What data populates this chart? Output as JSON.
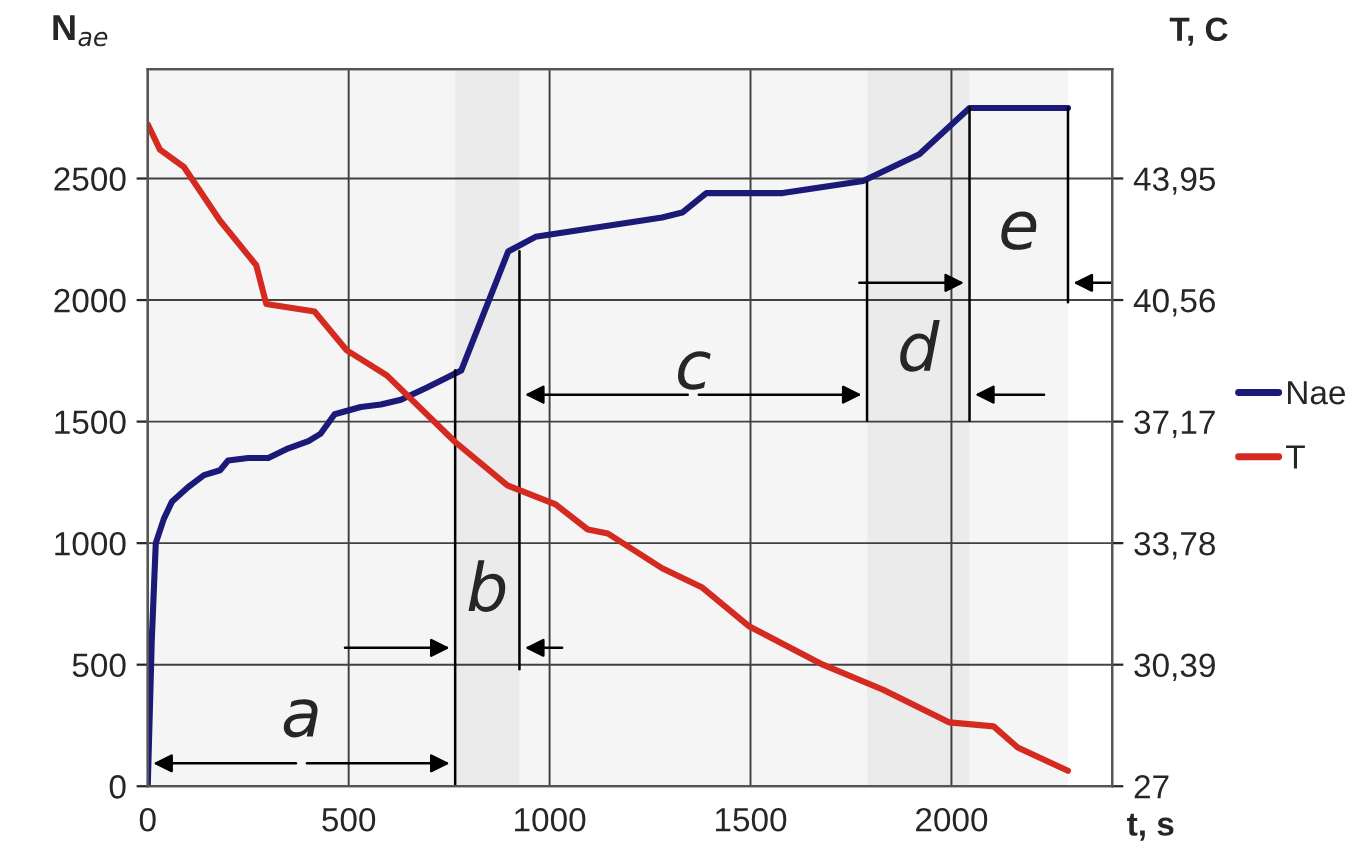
{
  "chart_data": {
    "type": "line",
    "xlabel": "t, s",
    "ylabel": "N$_{ae}$",
    "y2label": "T, C",
    "xlim": [
      0,
      2400
    ],
    "xticks": [
      0,
      500,
      1000,
      1500,
      2000
    ],
    "ylim": [
      0,
      2950
    ],
    "yticks": [
      0,
      500,
      1000,
      1500,
      2000,
      2500
    ],
    "y2lim": [
      27,
      47
    ],
    "y2ticks": [
      27,
      {
        "value": 30.39,
        "label": "30,39"
      },
      {
        "value": 33.78,
        "label": "33,78"
      },
      {
        "value": 37.17,
        "label": "37,17"
      },
      {
        "value": 40.56,
        "label": "40,56"
      },
      {
        "value": 43.95,
        "label": "43,95"
      }
    ],
    "grid": true,
    "legend": "right",
    "line_style": "solid",
    "series": [
      {
        "name": "Nae",
        "color": "#1c1a78",
        "x": [
          0,
          10,
          20,
          40,
          60,
          100,
          140,
          180,
          200,
          250,
          300,
          350,
          400,
          430,
          465,
          530,
          580,
          630,
          695,
          780,
          897,
          965,
          1280,
          1330,
          1390,
          1580,
          1780,
          1920,
          2045,
          2290
        ],
        "values": [
          0,
          600,
          1000,
          1100,
          1170,
          1230,
          1280,
          1300,
          1340,
          1350,
          1350,
          1390,
          1420,
          1450,
          1530,
          1560,
          1570,
          1590,
          1640,
          1710,
          2200,
          2260,
          2340,
          2360,
          2440,
          2440,
          2490,
          2600,
          2790,
          2790
        ]
      },
      {
        "name": "T",
        "color": "#d42a20",
        "axis": "y2",
        "x": [
          0,
          30,
          90,
          180,
          270,
          295,
          415,
          495,
          595,
          765,
          895,
          1015,
          1095,
          1145,
          1280,
          1380,
          1495,
          1680,
          1830,
          1995,
          2105,
          2165,
          2290
        ],
        "values": [
          45.46,
          44.76,
          44.27,
          42.77,
          41.53,
          40.45,
          40.24,
          39.16,
          38.46,
          36.6,
          35.39,
          34.86,
          34.16,
          34.05,
          33.08,
          32.54,
          31.47,
          30.39,
          29.69,
          28.78,
          28.67,
          28.08,
          27.43
        ]
      }
    ],
    "bands": [
      {
        "axis": "x",
        "from": 0,
        "to": 765,
        "label": "a",
        "color": "#000000"
      },
      {
        "axis": "x",
        "from": 765,
        "to": 925,
        "label": "b",
        "color": "#000000"
      },
      {
        "axis": "x",
        "from": 925,
        "to": 1790,
        "label": "c",
        "color": "#000000"
      },
      {
        "axis": "x",
        "from": 1790,
        "to": 2045,
        "label": "d",
        "color": "#000000"
      },
      {
        "axis": "x",
        "from": 2045,
        "to": 2290,
        "label": "e",
        "color": "#000000"
      }
    ]
  }
}
